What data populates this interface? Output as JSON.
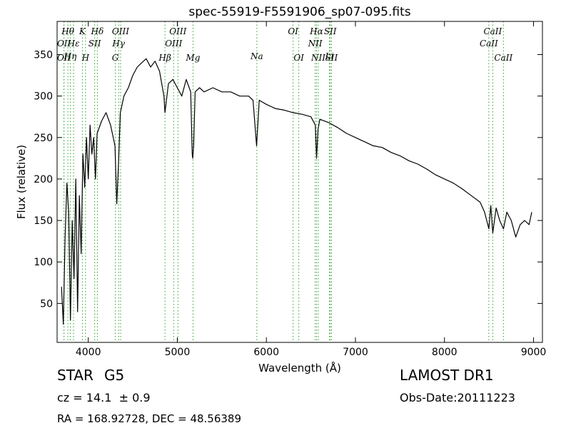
{
  "chart_data": {
    "type": "line",
    "title": "spec-55919-F5591906_sp07-095.fits",
    "xlabel": "Wavelength (Å)",
    "ylabel": "Flux (relative)",
    "xlim": [
      3650,
      9100
    ],
    "ylim": [
      3,
      390
    ],
    "xticks": [
      4000,
      5000,
      6000,
      7000,
      8000,
      9000
    ],
    "yticks": [
      50,
      100,
      150,
      200,
      250,
      300,
      350
    ],
    "grid": false,
    "series_color": "#000000",
    "line_color": "#2ca02c",
    "series": [
      {
        "x": [
          3700,
          3720,
          3740,
          3760,
          3780,
          3800,
          3820,
          3840,
          3860,
          3880,
          3900,
          3920,
          3940,
          3960,
          3980,
          4000,
          4020,
          4040,
          4060,
          4080,
          4100,
          4150,
          4200,
          4250,
          4300,
          4320,
          4340,
          4360,
          4400,
          4450,
          4500,
          4550,
          4600,
          4650,
          4700,
          4750,
          4800,
          4850,
          4861,
          4900,
          4950,
          5000,
          5050,
          5100,
          5150,
          5167,
          5173,
          5183,
          5200,
          5250,
          5300,
          5400,
          5500,
          5600,
          5700,
          5800,
          5850,
          5890,
          5896,
          5920,
          6000,
          6100,
          6200,
          6300,
          6400,
          6500,
          6550,
          6563,
          6580,
          6600,
          6700,
          6800,
          6900,
          7000,
          7100,
          7200,
          7300,
          7400,
          7500,
          7600,
          7700,
          7800,
          7900,
          8000,
          8100,
          8200,
          8300,
          8400,
          8450,
          8498,
          8520,
          8542,
          8580,
          8620,
          8662,
          8700,
          8750,
          8800,
          8850,
          8900,
          8950,
          8980
        ],
        "y": [
          70,
          25,
          130,
          195,
          160,
          30,
          150,
          80,
          200,
          40,
          180,
          110,
          230,
          190,
          250,
          200,
          265,
          230,
          250,
          200,
          255,
          270,
          280,
          265,
          240,
          170,
          220,
          280,
          300,
          310,
          325,
          335,
          340,
          345,
          335,
          342,
          330,
          300,
          280,
          315,
          320,
          310,
          300,
          320,
          305,
          230,
          225,
          240,
          305,
          310,
          305,
          310,
          305,
          305,
          300,
          300,
          295,
          240,
          250,
          295,
          290,
          285,
          283,
          280,
          278,
          275,
          265,
          225,
          260,
          272,
          268,
          262,
          255,
          250,
          245,
          240,
          238,
          232,
          228,
          222,
          218,
          212,
          205,
          200,
          195,
          188,
          180,
          172,
          160,
          140,
          168,
          135,
          165,
          150,
          140,
          160,
          150,
          130,
          145,
          150,
          145,
          160
        ]
      }
    ],
    "line_labels": [
      {
        "x": 3727,
        "text": "OII",
        "row": 2
      },
      {
        "x": 3727,
        "text": "OII",
        "row": 4
      },
      {
        "x": 3771,
        "text": "Hθ",
        "row": 1
      },
      {
        "x": 3798,
        "text": "Hη",
        "row": 3
      },
      {
        "x": 3835,
        "text": "Hε",
        "row": 2
      },
      {
        "x": 3934,
        "text": "K",
        "row": 1
      },
      {
        "x": 3969,
        "text": "H",
        "row": 4
      },
      {
        "x": 4072,
        "text": "SII",
        "row": 2
      },
      {
        "x": 4102,
        "text": "Hδ",
        "row": 1
      },
      {
        "x": 4304,
        "text": "G",
        "row": 4
      },
      {
        "x": 4341,
        "text": "Hγ",
        "row": 2
      },
      {
        "x": 4363,
        "text": "OIII",
        "row": 1
      },
      {
        "x": 4861,
        "text": "Hβ",
        "row": 4
      },
      {
        "x": 4959,
        "text": "OIII",
        "row": 2
      },
      {
        "x": 5007,
        "text": "OIII",
        "row": 1
      },
      {
        "x": 5176,
        "text": "Mg",
        "row": 4
      },
      {
        "x": 5893,
        "text": "Na",
        "row": 3
      },
      {
        "x": 6300,
        "text": "OI",
        "row": 1
      },
      {
        "x": 6364,
        "text": "OI",
        "row": 4
      },
      {
        "x": 6548,
        "text": "NII",
        "row": 2
      },
      {
        "x": 6563,
        "text": "Hα",
        "row": 1
      },
      {
        "x": 6583,
        "text": "NII",
        "row": 4
      },
      {
        "x": 6708,
        "text": "Li",
        "row": 3
      },
      {
        "x": 6717,
        "text": "SII",
        "row": 1
      },
      {
        "x": 6731,
        "text": "SII",
        "row": 4
      },
      {
        "x": 8498,
        "text": "CaII",
        "row": 2
      },
      {
        "x": 8542,
        "text": "CaII",
        "row": 1
      },
      {
        "x": 8662,
        "text": "CaII",
        "row": 4
      }
    ]
  },
  "info": {
    "object_class": "STAR",
    "subclass": "G5",
    "survey": "LAMOST DR1",
    "cz_text": "cz = 14.1  ± 0.9",
    "obs_date": "Obs-Date:20111223",
    "coords": "RA = 168.92728, DEC = 48.56389"
  }
}
